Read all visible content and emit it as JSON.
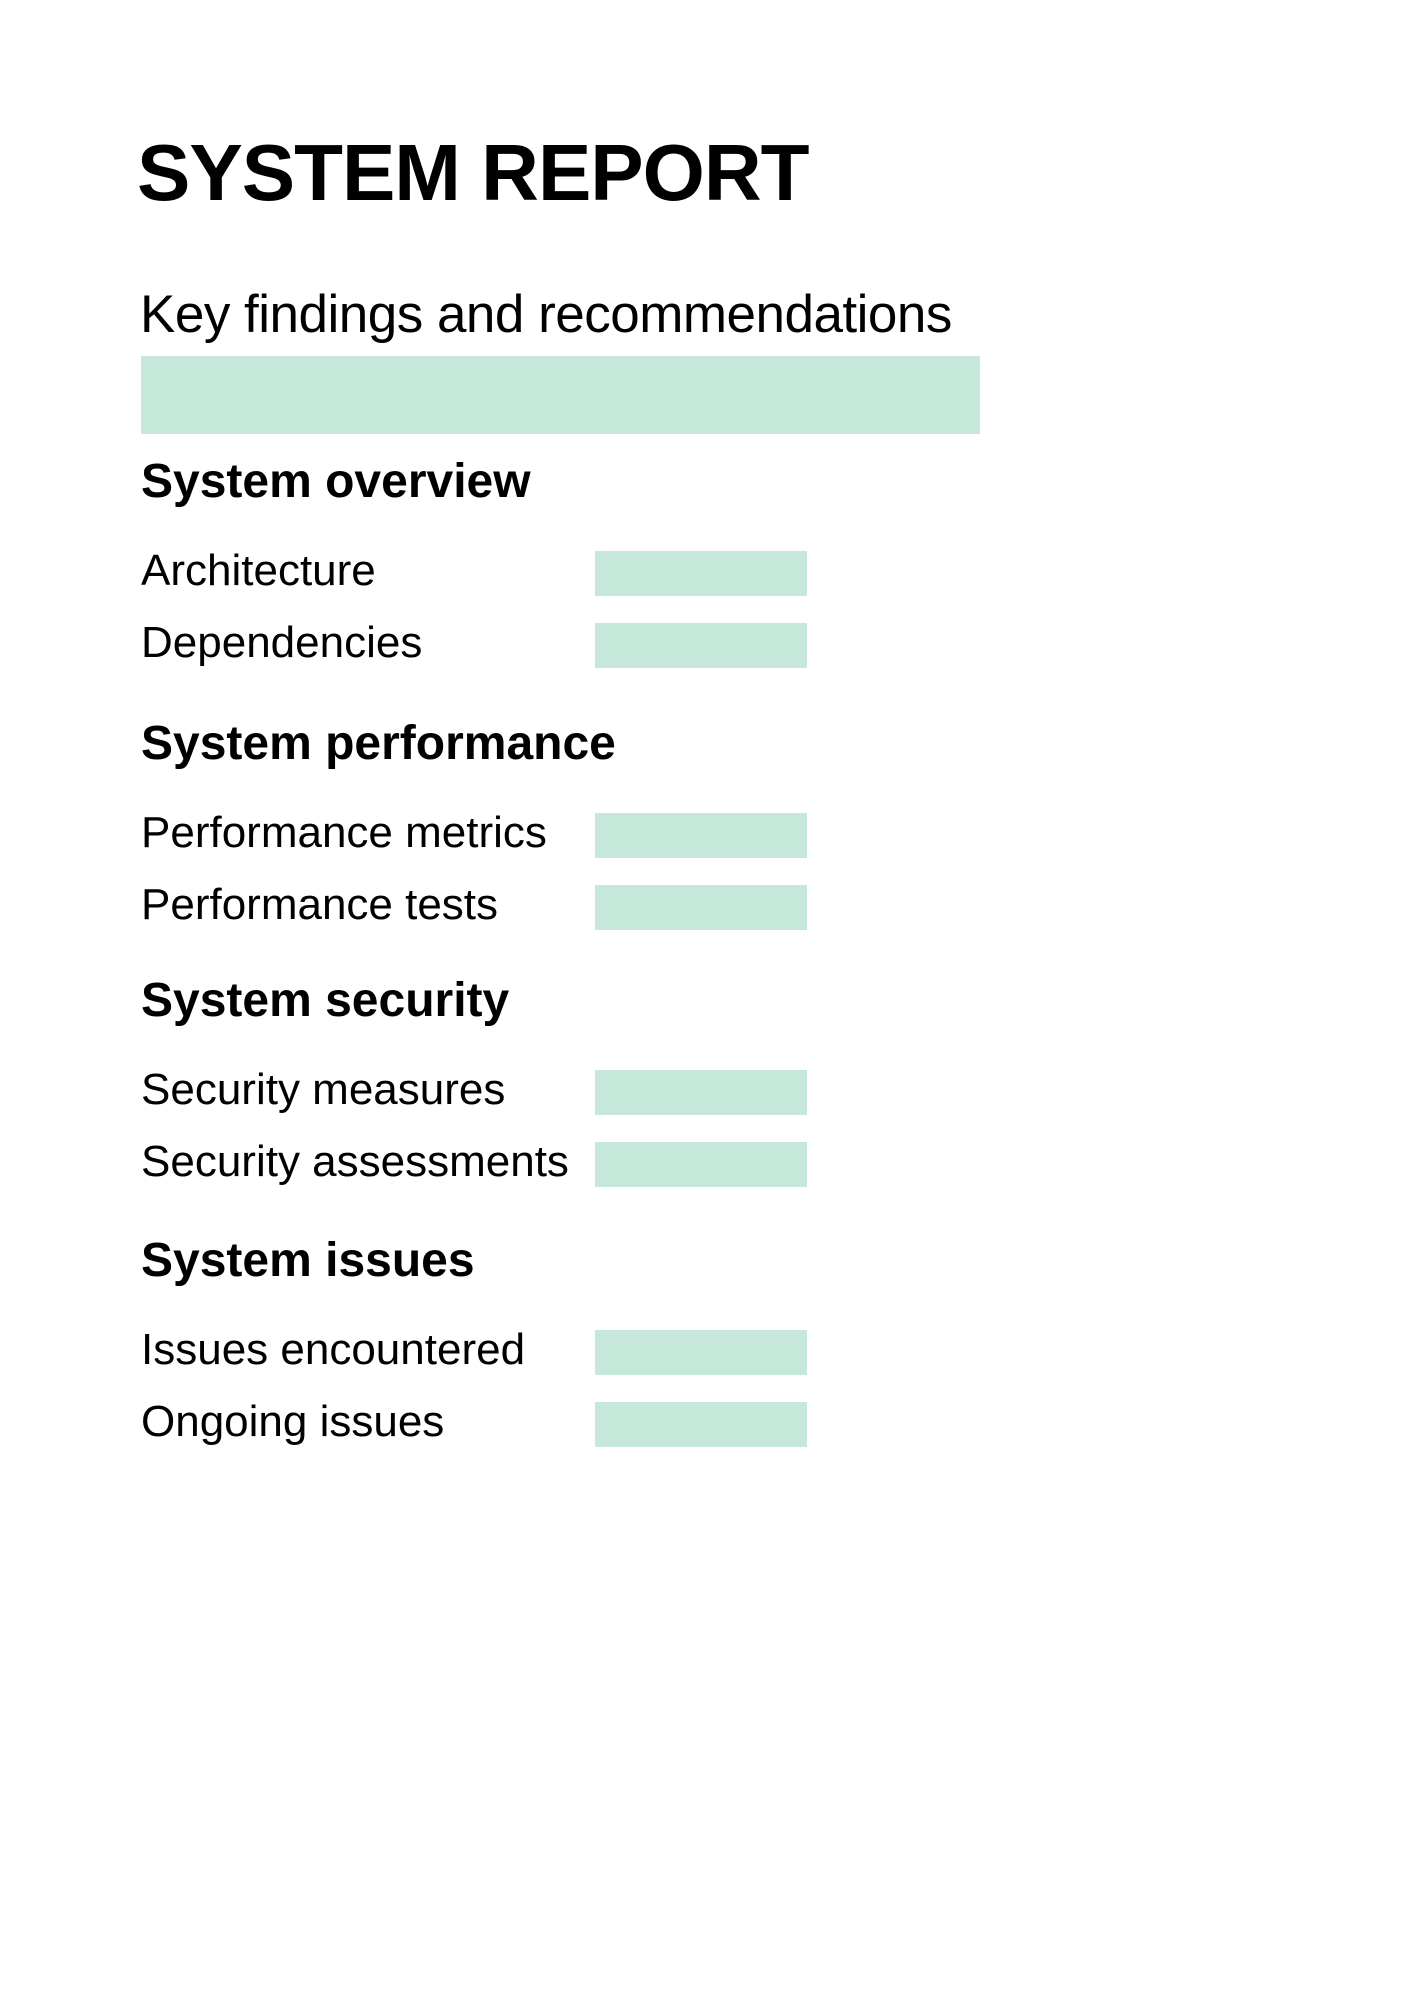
{
  "title": "SYSTEM REPORT",
  "subtitle": "Key findings and recommendations",
  "colors": {
    "accent": "#c6e8da",
    "text": "#000000",
    "background": "#ffffff"
  },
  "sections": [
    {
      "heading": "System overview",
      "items": [
        {
          "label": "Architecture"
        },
        {
          "label": "Dependencies"
        }
      ]
    },
    {
      "heading": "System performance",
      "items": [
        {
          "label": "Performance metrics"
        },
        {
          "label": "Performance tests"
        }
      ]
    },
    {
      "heading": "System security",
      "items": [
        {
          "label": "Security measures"
        },
        {
          "label": "Security assessments"
        }
      ]
    },
    {
      "heading": "System issues",
      "items": [
        {
          "label": "Issues encountered"
        },
        {
          "label": "Ongoing issues"
        }
      ]
    }
  ]
}
